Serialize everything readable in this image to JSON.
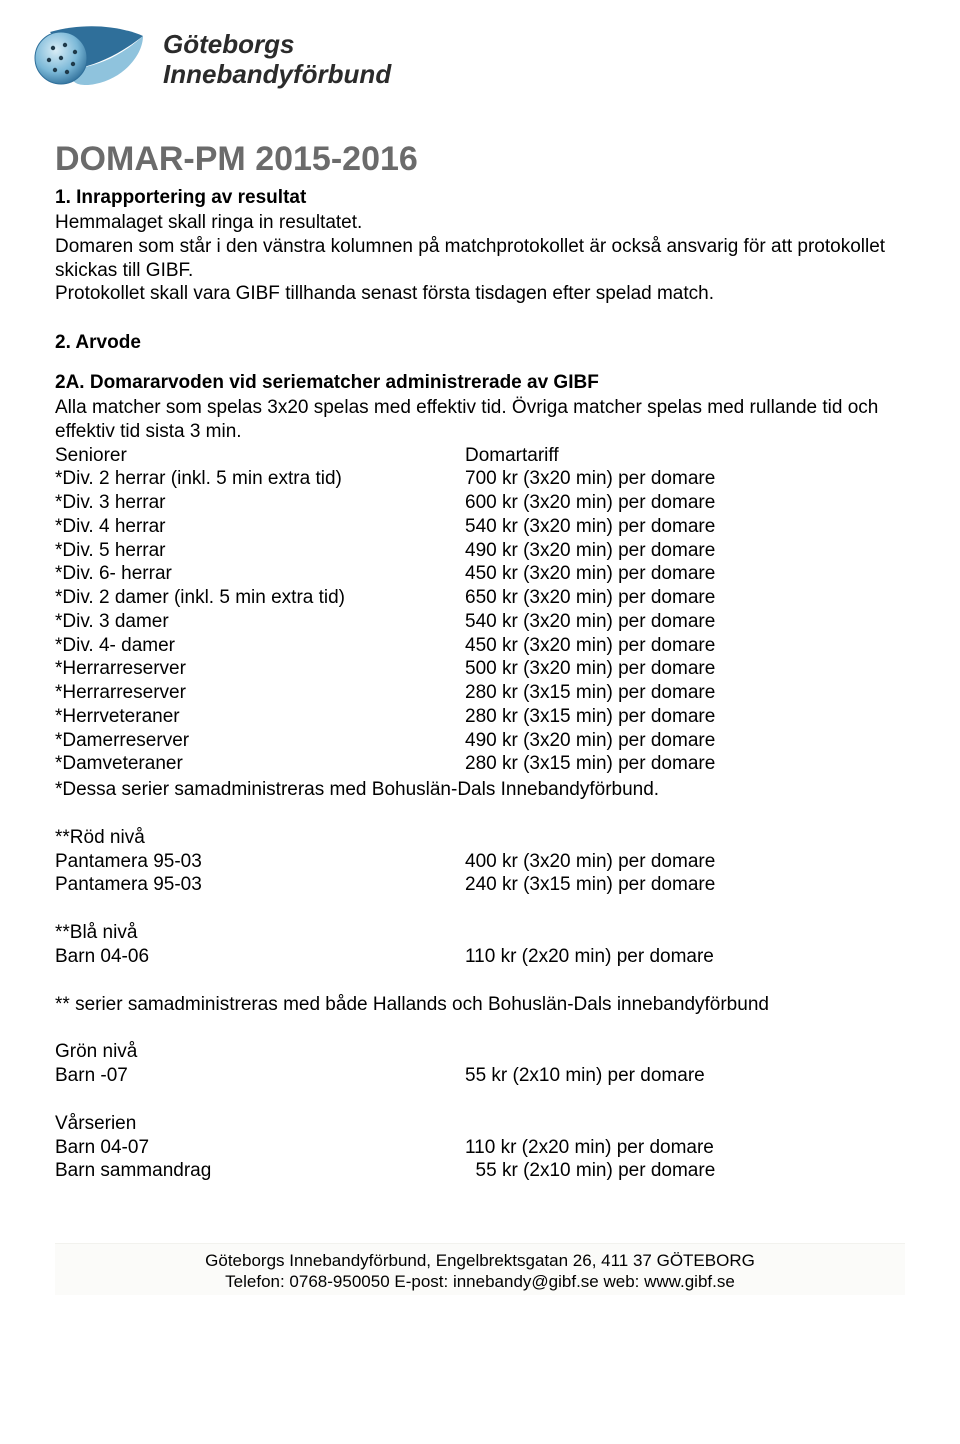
{
  "org": {
    "line1": "Göteborgs",
    "line2": "Innebandyförbund"
  },
  "title": "DOMAR-PM 2015-2016",
  "section1": {
    "heading": "1. Inrapportering av resultat",
    "body": "Hemmalaget skall ringa in resultatet.\nDomaren som står i den vänstra kolumnen på matchprotokollet är också ansvarig för att protokollet skickas till GIBF.\nProtokollet skall vara GIBF tillhanda senast första tisdagen efter spelad match."
  },
  "section2": {
    "heading": "2. Arvode",
    "sub2a_heading": "2A. Domararvoden vid seriematcher administrerade av GIBF",
    "sub2a_body": "Alla matcher som spelas 3x20 spelas med effektiv tid. Övriga matcher spelas med rullande tid och effektiv tid sista 3 min.",
    "header_left": "Seniorer",
    "header_right": "Domartariff",
    "rows": [
      {
        "l": "*Div. 2 herrar (inkl. 5 min extra tid)",
        "r": "700 kr (3x20 min) per domare"
      },
      {
        "l": "*Div. 3 herrar",
        "r": "600 kr (3x20 min) per domare"
      },
      {
        "l": "*Div. 4 herrar",
        "r": "540 kr (3x20 min) per domare"
      },
      {
        "l": "*Div. 5 herrar",
        "r": "490 kr (3x20 min) per domare"
      },
      {
        "l": "*Div. 6- herrar",
        "r": "450 kr (3x20 min) per domare"
      },
      {
        "l": "*Div. 2 damer (inkl. 5 min extra tid)",
        "r": "650 kr (3x20 min) per domare"
      },
      {
        "l": "*Div. 3 damer",
        "r": "540 kr (3x20 min) per domare"
      },
      {
        "l": "*Div. 4- damer",
        "r": "450 kr (3x20 min) per domare"
      },
      {
        "l": "*Herrarreserver",
        "r": "500 kr (3x20 min) per domare"
      },
      {
        "l": "*Herrarreserver",
        "r": "280 kr (3x15 min) per domare"
      },
      {
        "l": "*Herrveteraner",
        "r": "280 kr (3x15 min) per domare"
      },
      {
        "l": "*Damerreserver",
        "r": "490 kr (3x20 min) per domare"
      },
      {
        "l": "*Damveteraner",
        "r": "280 kr (3x15 min) per domare"
      }
    ],
    "note1": "*Dessa serier samadministreras med Bohuslän-Dals Innebandyförbund.",
    "red_heading": "**Röd nivå",
    "red_rows": [
      {
        "l": "Pantamera 95-03",
        "r": "400 kr (3x20 min) per domare"
      },
      {
        "l": "Pantamera 95-03",
        "r": "240 kr (3x15 min) per domare"
      }
    ],
    "blue_heading": "**Blå nivå",
    "blue_rows": [
      {
        "l": "Barn 04-06",
        "r": "110 kr (2x20 min) per domare"
      }
    ],
    "note2": "** serier samadministreras med både Hallands och Bohuslän-Dals innebandyförbund",
    "green_heading": "Grön nivå",
    "green_rows": [
      {
        "l": "Barn -07",
        "r": "55 kr (2x10 min) per domare"
      }
    ],
    "var_heading": "Vårserien",
    "var_rows": [
      {
        "l": "Barn 04-07",
        "r": "110 kr (2x20 min) per domare"
      },
      {
        "l": "Barn sammandrag",
        "r": "  55 kr (2x10 min) per domare"
      }
    ]
  },
  "footer": {
    "line1": "Göteborgs Innebandyförbund, Engelbrektsgatan 26, 411 37 GÖTEBORG",
    "line2": "Telefon: 0768-950050 E-post: innebandy@gibf.se  web: www.gibf.se"
  },
  "colors": {
    "title": "#6b6b6b",
    "logo_blue_dark": "#2f6f9a",
    "logo_blue_light": "#8fc3dd",
    "text": "#000000"
  }
}
